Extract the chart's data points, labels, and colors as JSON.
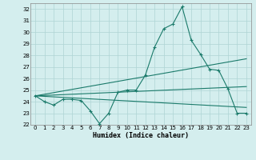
{
  "title": "",
  "xlabel": "Humidex (Indice chaleur)",
  "bg_color": "#d4eeee",
  "grid_color": "#aed4d4",
  "line_color": "#1a7a6a",
  "xlim": [
    -0.5,
    23.5
  ],
  "ylim": [
    22,
    32.5
  ],
  "yticks": [
    22,
    23,
    24,
    25,
    26,
    27,
    28,
    29,
    30,
    31,
    32
  ],
  "xticks": [
    0,
    1,
    2,
    3,
    4,
    5,
    6,
    7,
    8,
    9,
    10,
    11,
    12,
    13,
    14,
    15,
    16,
    17,
    18,
    19,
    20,
    21,
    22,
    23
  ],
  "series1_x": [
    0,
    1,
    2,
    3,
    4,
    5,
    6,
    7,
    8,
    9,
    10,
    11,
    12,
    13,
    14,
    15,
    16,
    17,
    18,
    19,
    20,
    21,
    22,
    23
  ],
  "series1_y": [
    24.5,
    24.0,
    23.7,
    24.2,
    24.2,
    24.1,
    23.2,
    22.1,
    23.0,
    24.8,
    25.0,
    25.0,
    26.3,
    28.7,
    30.3,
    30.7,
    32.2,
    29.3,
    28.1,
    26.8,
    26.7,
    25.1,
    23.0,
    23.0
  ],
  "series2_x": [
    0,
    23
  ],
  "series2_y": [
    24.5,
    25.3
  ],
  "series3_x": [
    0,
    23
  ],
  "series3_y": [
    24.5,
    27.7
  ],
  "series4_x": [
    0,
    23
  ],
  "series4_y": [
    24.5,
    23.5
  ]
}
